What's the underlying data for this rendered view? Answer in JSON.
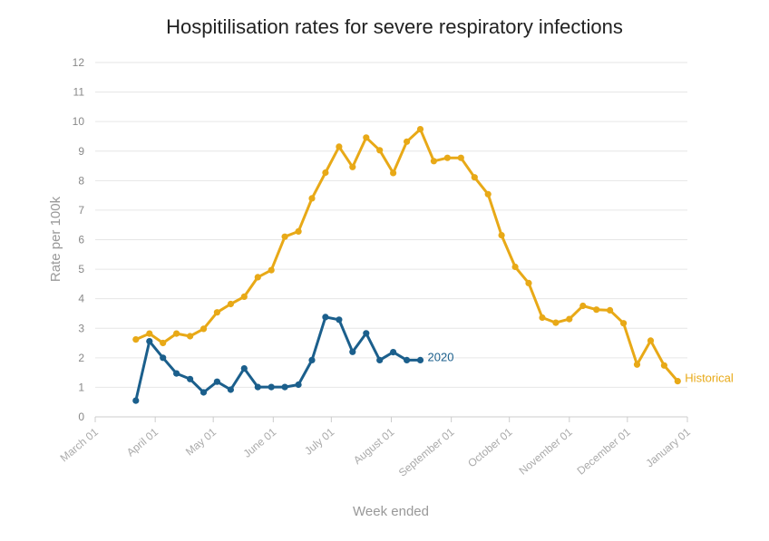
{
  "chart_data": {
    "type": "line",
    "title": "Hospitilisation rates for severe respiratory infections",
    "xlabel": "Week ended",
    "ylabel": "Rate per 100k",
    "ylim": [
      0,
      12
    ],
    "xlim": [
      "2020-03-01",
      "2021-01-01"
    ],
    "yticks": [
      "0",
      "1",
      "2",
      "3",
      "4",
      "5",
      "6",
      "7",
      "8",
      "9",
      "10",
      "11",
      "12"
    ],
    "xticks": [
      {
        "date": "2020-03-01",
        "label": "March 01"
      },
      {
        "date": "2020-04-01",
        "label": "April 01"
      },
      {
        "date": "2020-05-01",
        "label": "May 01"
      },
      {
        "date": "2020-06-01",
        "label": "June 01"
      },
      {
        "date": "2020-07-01",
        "label": "July 01"
      },
      {
        "date": "2020-08-01",
        "label": "August 01"
      },
      {
        "date": "2020-09-01",
        "label": "September 01"
      },
      {
        "date": "2020-10-01",
        "label": "October 01"
      },
      {
        "date": "2020-11-01",
        "label": "November 01"
      },
      {
        "date": "2020-12-01",
        "label": "December 01"
      },
      {
        "date": "2021-01-01",
        "label": "January 01"
      }
    ],
    "grid": true,
    "series": [
      {
        "name": "Historical",
        "color": "#e8a917",
        "x": [
          "2020-03-22",
          "2020-03-29",
          "2020-04-05",
          "2020-04-12",
          "2020-04-19",
          "2020-04-26",
          "2020-05-03",
          "2020-05-10",
          "2020-05-17",
          "2020-05-24",
          "2020-05-31",
          "2020-06-07",
          "2020-06-14",
          "2020-06-21",
          "2020-06-28",
          "2020-07-05",
          "2020-07-12",
          "2020-07-19",
          "2020-07-26",
          "2020-08-02",
          "2020-08-09",
          "2020-08-16",
          "2020-08-23",
          "2020-08-30",
          "2020-09-06",
          "2020-09-13",
          "2020-09-20",
          "2020-09-27",
          "2020-10-04",
          "2020-10-11",
          "2020-10-18",
          "2020-10-25",
          "2020-11-01",
          "2020-11-08",
          "2020-11-15",
          "2020-11-22",
          "2020-11-29",
          "2020-12-06",
          "2020-12-13",
          "2020-12-20",
          "2020-12-27"
        ],
        "values": [
          2.62,
          2.82,
          2.5,
          2.82,
          2.73,
          2.98,
          3.54,
          3.82,
          4.07,
          4.73,
          4.97,
          6.1,
          6.28,
          7.4,
          8.27,
          9.15,
          8.46,
          9.46,
          9.03,
          8.26,
          9.32,
          9.74,
          8.66,
          8.77,
          8.77,
          8.11,
          7.54,
          6.15,
          5.08,
          4.53,
          3.36,
          3.19,
          3.31,
          3.76,
          3.63,
          3.61,
          3.17,
          1.77,
          2.58,
          1.74,
          1.21
        ]
      },
      {
        "name": "2020",
        "color": "#1b5f8c",
        "x": [
          "2020-03-22",
          "2020-03-29",
          "2020-04-05",
          "2020-04-12",
          "2020-04-19",
          "2020-04-26",
          "2020-05-03",
          "2020-05-10",
          "2020-05-17",
          "2020-05-24",
          "2020-05-31",
          "2020-06-07",
          "2020-06-14",
          "2020-06-21",
          "2020-06-28",
          "2020-07-05",
          "2020-07-12",
          "2020-07-19",
          "2020-07-26",
          "2020-08-02",
          "2020-08-09",
          "2020-08-16"
        ],
        "values": [
          0.55,
          2.56,
          2.0,
          1.47,
          1.28,
          0.83,
          1.19,
          0.92,
          1.64,
          1.01,
          1.01,
          1.01,
          1.09,
          1.92,
          3.38,
          3.29,
          2.2,
          2.83,
          1.92,
          2.19,
          1.92,
          1.92
        ]
      }
    ]
  }
}
